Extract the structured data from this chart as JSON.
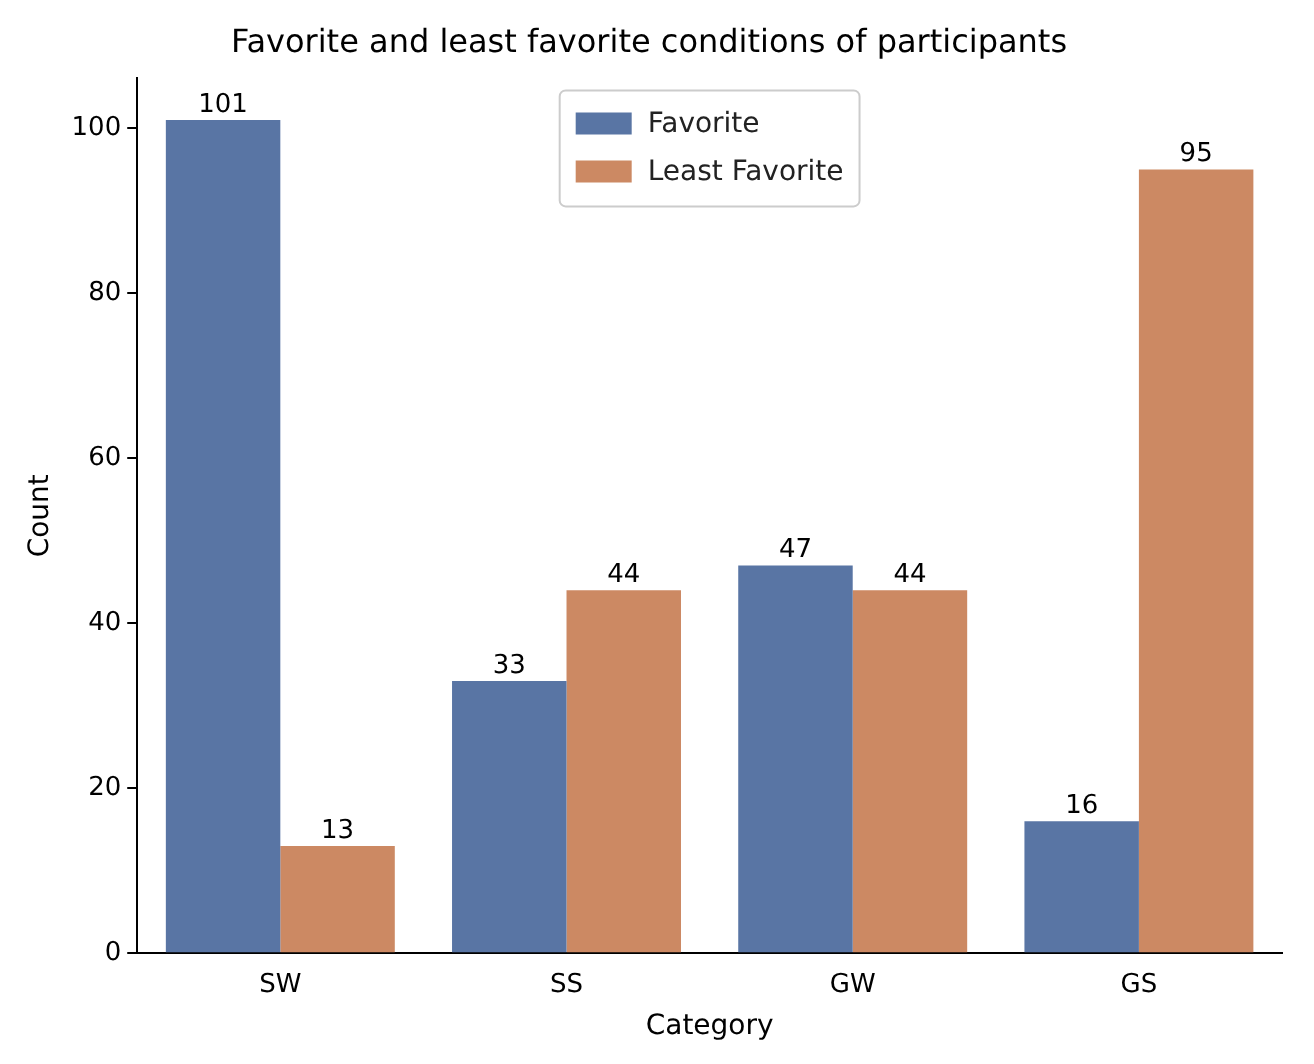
{
  "chart_data": {
    "type": "bar",
    "title": "Favorite and least favorite conditions of participants",
    "xlabel": "Category",
    "ylabel": "Count",
    "categories": [
      "SW",
      "SS",
      "GW",
      "GS"
    ],
    "series": [
      {
        "name": "Favorite",
        "color": "#5975a4",
        "values": [
          101,
          33,
          47,
          16
        ]
      },
      {
        "name": "Least Favorite",
        "color": "#cc8963",
        "values": [
          13,
          44,
          44,
          95
        ]
      }
    ],
    "ylim": [
      0,
      106.05
    ],
    "yticks": [
      0,
      20,
      40,
      60,
      80,
      100
    ],
    "grid": false,
    "legend": "top",
    "data_labels": true
  }
}
